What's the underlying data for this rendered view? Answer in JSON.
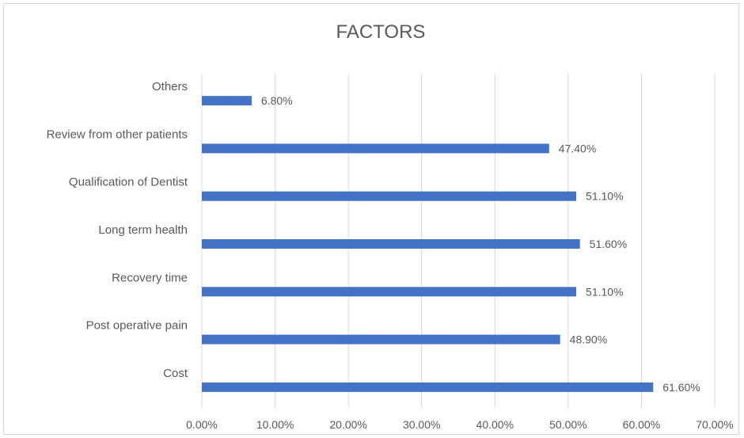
{
  "chart_data": {
    "type": "bar",
    "orientation": "horizontal",
    "title": "FACTORS",
    "xlabel": "",
    "ylabel": "",
    "categories": [
      "Others",
      "Review from other patients",
      "Qualification of Dentist",
      "Long term health",
      "Recovery time",
      "Post operative pain",
      "Cost"
    ],
    "values": [
      6.8,
      47.4,
      51.1,
      51.6,
      51.1,
      48.9,
      61.6
    ],
    "data_labels": [
      "6.80%",
      "47.40%",
      "51.10%",
      "51.60%",
      "51.10%",
      "48.90%",
      "61.60%"
    ],
    "xlim": [
      0,
      70
    ],
    "x_ticks": [
      0,
      10,
      20,
      30,
      40,
      50,
      60,
      70
    ],
    "x_tick_labels": [
      "0.00%",
      "10.00%",
      "20.00%",
      "30.00%",
      "40.00%",
      "50.00%",
      "60.00%",
      "70.00%"
    ],
    "bar_color": "#4472c4",
    "grid": true,
    "legend": "none"
  }
}
